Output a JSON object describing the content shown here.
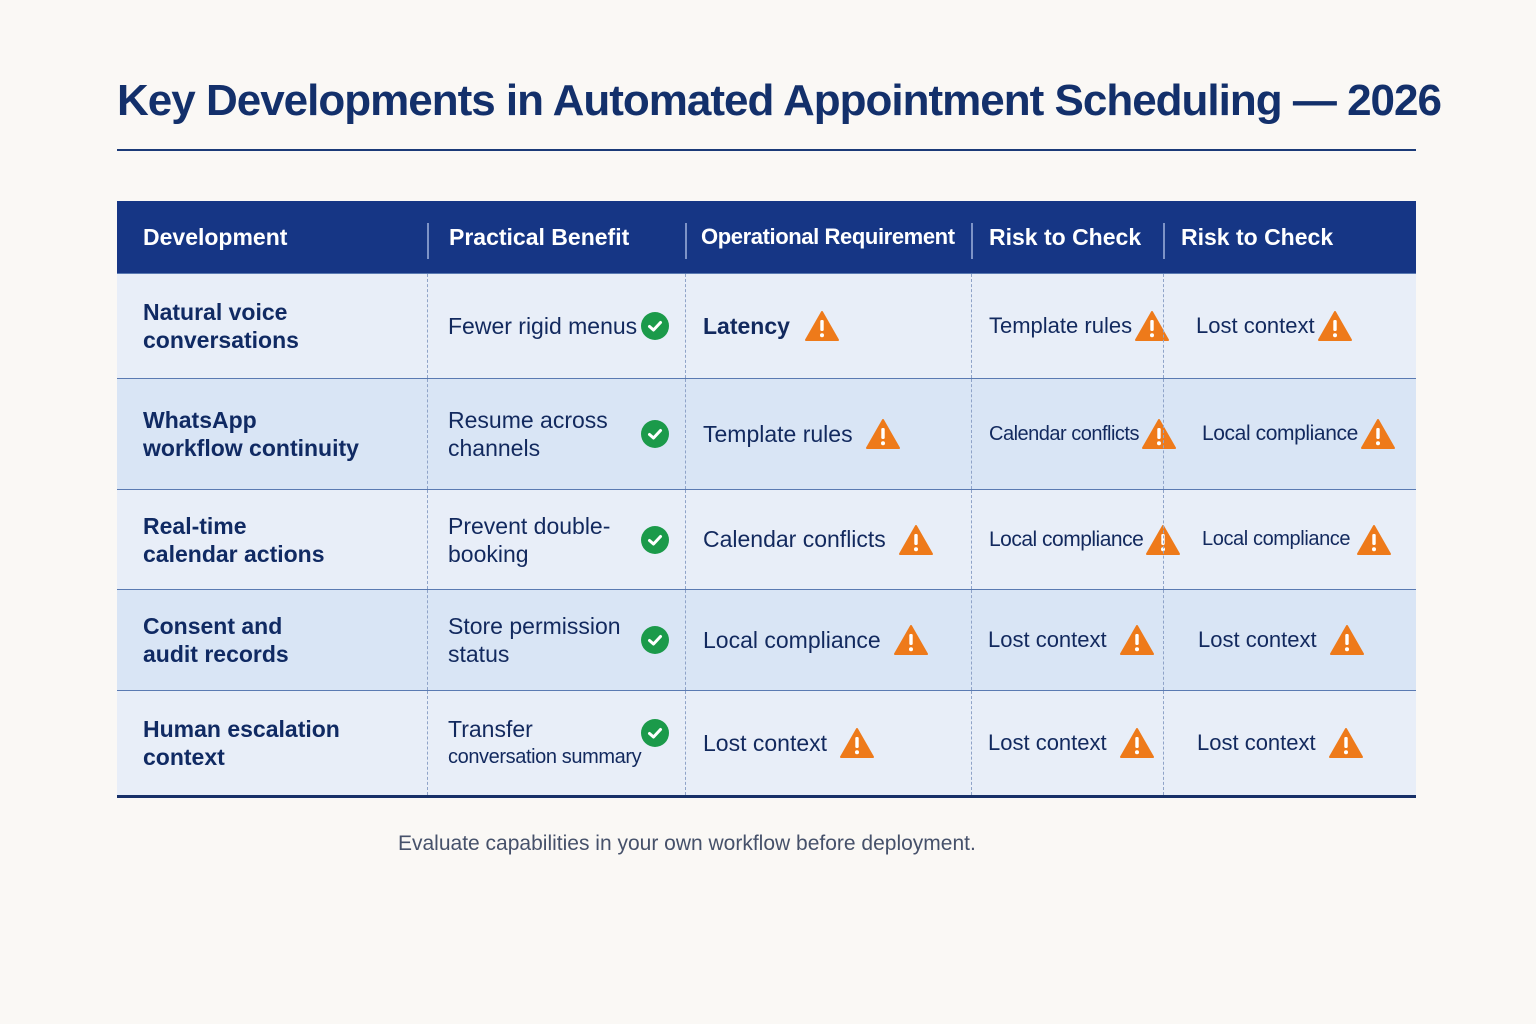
{
  "title": "Key Developments in Automated Appointment Scheduling — 2026",
  "caption": "Evaluate capabilities in your own workflow before deployment.",
  "colors": {
    "header_bg": "#163685",
    "title": "#13306b",
    "check": "#1b9a4a",
    "warning": "#ee7a1a"
  },
  "table": {
    "headers": [
      "Development",
      "Practical Benefit",
      "Operational Requirement",
      "Risk to Check",
      "Risk to Check"
    ],
    "rows": [
      {
        "development": [
          "Natural voice",
          "conversations"
        ],
        "benefit": [
          "Fewer rigid menus"
        ],
        "benefit_icon": "check-circle-icon",
        "requirement": "Latency",
        "risk1": "Template rules",
        "risk2": "Lost context",
        "warn_icon": "warning-triangle-icon"
      },
      {
        "development": [
          "WhatsApp",
          "workflow continuity"
        ],
        "benefit": [
          "Resume across",
          "channels"
        ],
        "benefit_icon": "check-circle-icon",
        "requirement": "Template rules",
        "risk1": "Calendar conflicts",
        "risk2": "Local compliance",
        "warn_icon": "warning-triangle-icon"
      },
      {
        "development": [
          "Real-time",
          "calendar actions"
        ],
        "benefit": [
          "Prevent double-",
          "booking"
        ],
        "benefit_icon": "check-circle-icon",
        "requirement": "Calendar conflicts",
        "risk1": "Local compliance",
        "risk2": "Local compliance",
        "warn_icon": "warning-triangle-icon"
      },
      {
        "development": [
          "Consent and",
          "audit records"
        ],
        "benefit": [
          "Store permission",
          "status"
        ],
        "benefit_icon": "check-circle-icon",
        "requirement": "Local compliance",
        "risk1": "Lost context",
        "risk2": "Lost context",
        "warn_icon": "warning-triangle-icon"
      },
      {
        "development": [
          "Human escalation",
          "context"
        ],
        "benefit": [
          "Transfer",
          "conversation summary"
        ],
        "benefit_icon": "check-circle-icon",
        "requirement": "Lost context",
        "risk1": "Lost context",
        "risk2": "Lost context",
        "warn_icon": "warning-triangle-icon"
      }
    ]
  }
}
